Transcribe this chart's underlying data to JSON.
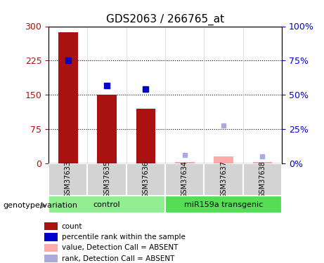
{
  "title": "GDS2063 / 266765_at",
  "samples": [
    "GSM37633",
    "GSM37635",
    "GSM37636",
    "GSM37634",
    "GSM37637",
    "GSM37638"
  ],
  "bar_heights_red": [
    287,
    150,
    120,
    null,
    null,
    null
  ],
  "bar_heights_pink": [
    null,
    null,
    null,
    2,
    15,
    2
  ],
  "dot_blue_y": [
    225,
    170,
    163,
    null,
    null,
    null
  ],
  "dot_lightblue_y": [
    null,
    null,
    null,
    18,
    83,
    15
  ],
  "ylim_left": [
    0,
    300
  ],
  "ylim_right": [
    0,
    100
  ],
  "yticks_left": [
    0,
    75,
    150,
    225,
    300
  ],
  "yticks_right": [
    0,
    25,
    50,
    75,
    100
  ],
  "ytick_labels_left": [
    "0",
    "75",
    "150",
    "225",
    "300"
  ],
  "ytick_labels_right": [
    "0%",
    "25%",
    "50%",
    "75%",
    "100%"
  ],
  "bar_width": 0.5,
  "color_red": "#aa1111",
  "color_pink": "#ffaaaa",
  "color_blue": "#0000cc",
  "color_lightblue": "#aaaadd",
  "color_control_green": "#90ee90",
  "color_transgenic_green": "#55dd55",
  "group_label_control": "control",
  "group_label_transgenic": "miR159a transgenic",
  "genotype_label": "genotype/variation",
  "legend_items": [
    {
      "label": "count",
      "color": "#aa1111"
    },
    {
      "label": "percentile rank within the sample",
      "color": "#0000cc"
    },
    {
      "label": "value, Detection Call = ABSENT",
      "color": "#ffaaaa"
    },
    {
      "label": "rank, Detection Call = ABSENT",
      "color": "#aaaadd"
    }
  ]
}
